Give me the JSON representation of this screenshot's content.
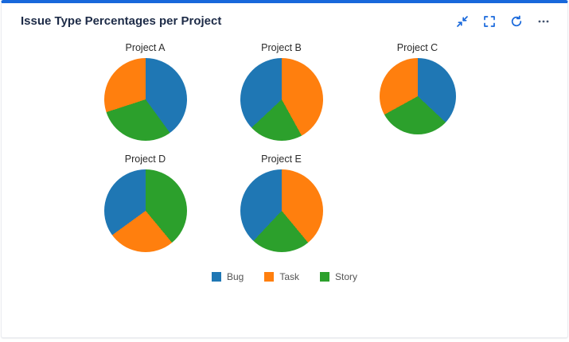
{
  "card": {
    "title": "Issue Type Percentages per Project",
    "accent_color": "#1868db",
    "toolbar": {
      "collapse_icon": "collapse",
      "fullscreen_icon": "fullscreen",
      "refresh_icon": "refresh",
      "more_icon": "more-options"
    }
  },
  "chart_data": {
    "type": "pie",
    "title": "Issue Type Percentages per Project",
    "legend": [
      "Bug",
      "Task",
      "Story"
    ],
    "legend_position": "bottom-center",
    "colors": {
      "Bug": "#1f77b4",
      "Task": "#ff7f0e",
      "Story": "#2ca02c"
    },
    "projects": [
      {
        "name": "Project A",
        "diameter": 104,
        "values": {
          "Bug": 40,
          "Task": 30,
          "Story": 30
        },
        "draw_order": [
          "Bug",
          "Story",
          "Task"
        ]
      },
      {
        "name": "Project B",
        "diameter": 104,
        "values": {
          "Bug": 37,
          "Task": 42,
          "Story": 21
        },
        "draw_order": [
          "Task",
          "Story",
          "Bug"
        ]
      },
      {
        "name": "Project C",
        "diameter": 96,
        "values": {
          "Bug": 37,
          "Task": 33,
          "Story": 30
        },
        "draw_order": [
          "Bug",
          "Story",
          "Task"
        ]
      },
      {
        "name": "Project D",
        "diameter": 104,
        "values": {
          "Bug": 35,
          "Task": 26,
          "Story": 39
        },
        "draw_order": [
          "Story",
          "Task",
          "Bug"
        ]
      },
      {
        "name": "Project E",
        "diameter": 104,
        "values": {
          "Bug": 38,
          "Task": 39,
          "Story": 23
        },
        "draw_order": [
          "Task",
          "Story",
          "Bug"
        ]
      }
    ]
  }
}
